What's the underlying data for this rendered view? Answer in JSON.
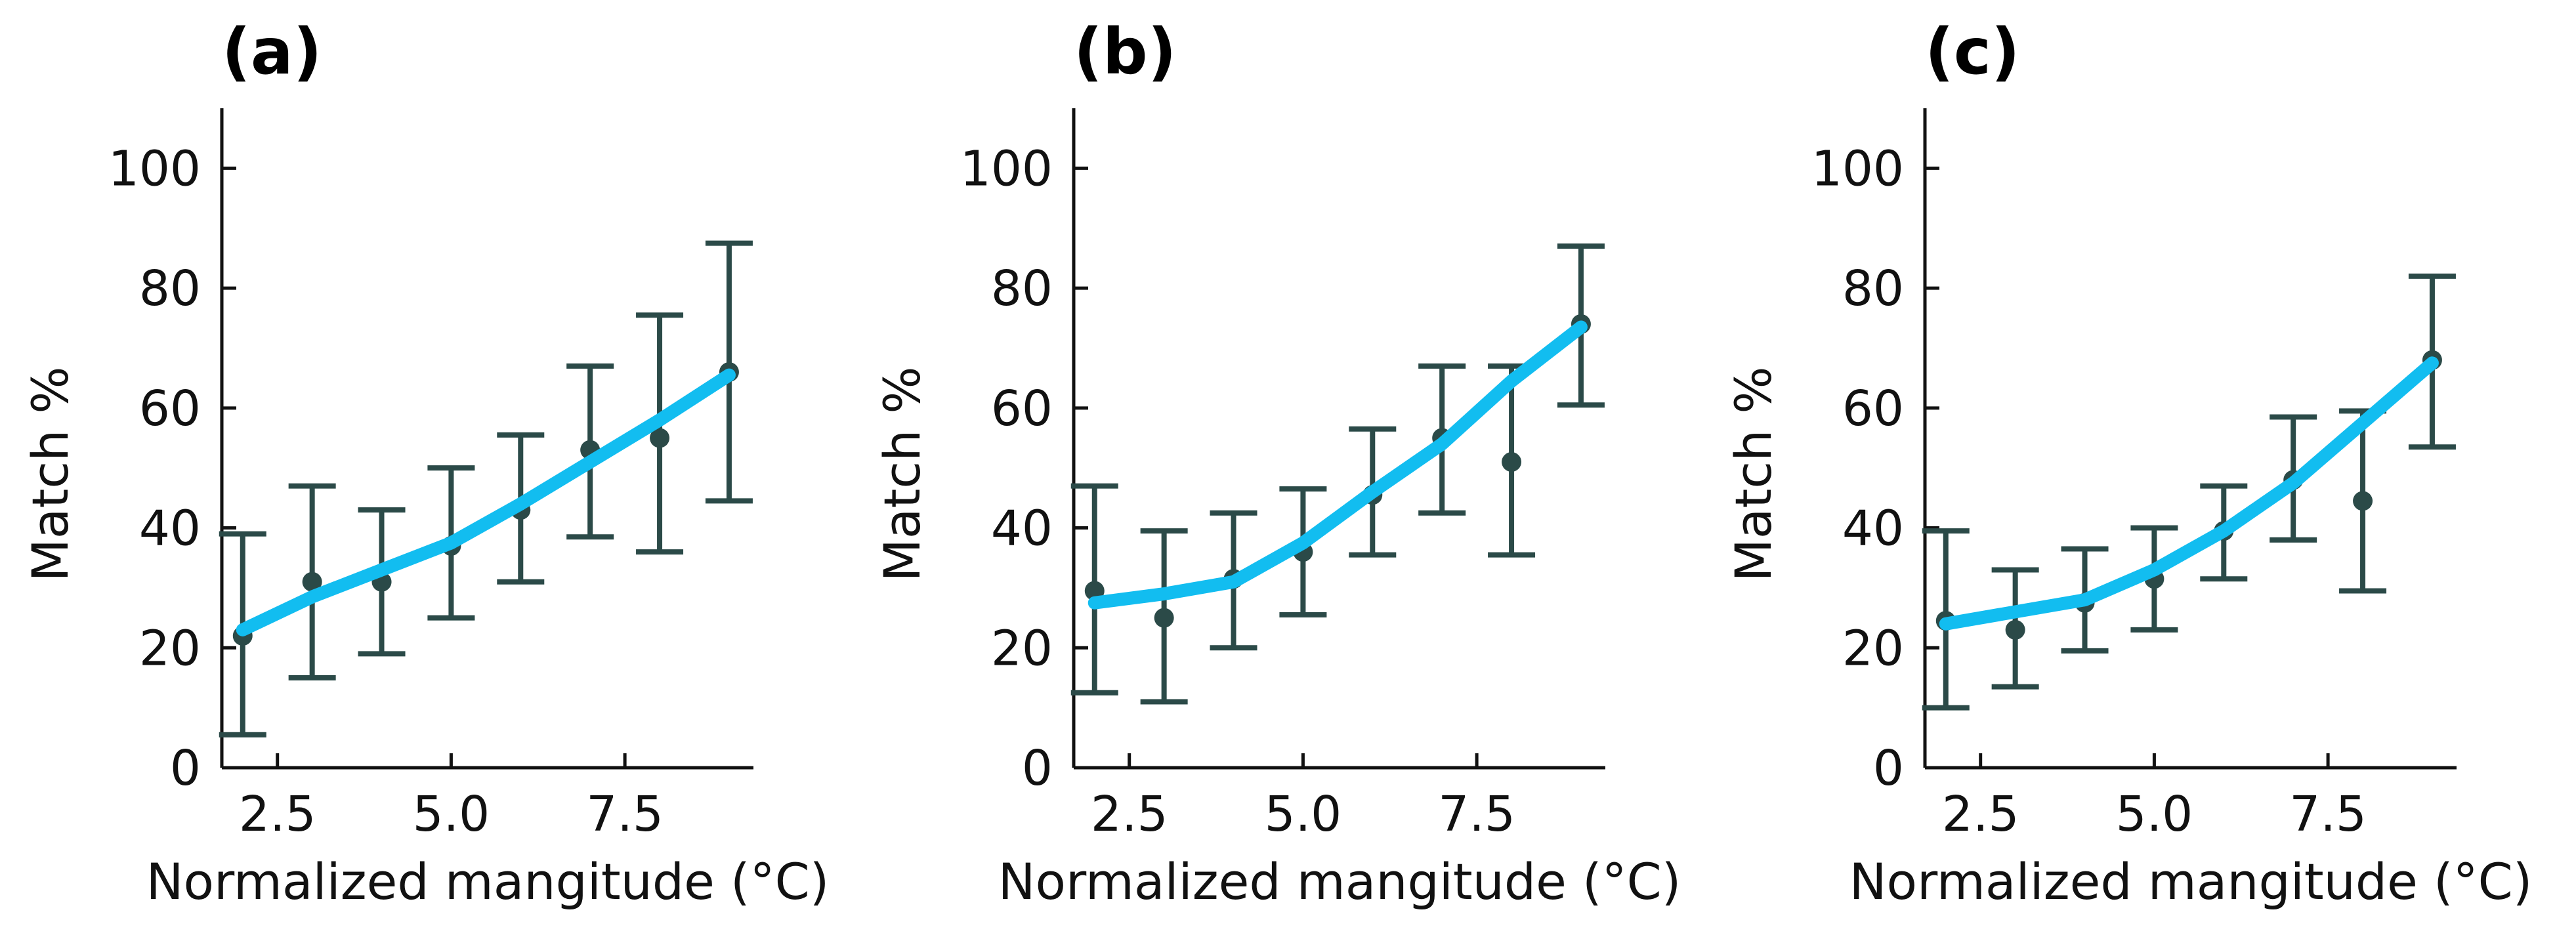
{
  "chart_data": [
    {
      "type": "line",
      "panel_label": "(a)",
      "xlabel": "Normalized mangitude (°C)",
      "ylabel": "Match %",
      "xlim": [
        1.7,
        9.35
      ],
      "ylim": [
        0,
        110
      ],
      "xticks": [
        2.5,
        5.0,
        7.5
      ],
      "xtick_labels": [
        "2.5",
        "5.0",
        "7.5"
      ],
      "yticks": [
        0,
        20,
        40,
        60,
        80,
        100
      ],
      "ytick_labels": [
        "0",
        "20",
        "40",
        "60",
        "80",
        "100"
      ],
      "points": {
        "x": [
          2,
          3,
          4,
          5,
          6,
          7,
          8,
          9
        ],
        "y": [
          22,
          31,
          31,
          37,
          43,
          53,
          55,
          66
        ],
        "err_low": [
          5.5,
          15,
          19,
          25,
          31,
          38.5,
          36,
          44.5
        ],
        "err_high": [
          39,
          47,
          43,
          50,
          55.5,
          67,
          75.5,
          87.5
        ]
      },
      "fit": {
        "x": [
          2,
          3,
          4,
          5,
          6,
          7,
          8,
          9
        ],
        "y": [
          23,
          28.5,
          33,
          37.5,
          44,
          51,
          58,
          65.5
        ]
      }
    },
    {
      "type": "line",
      "panel_label": "(b)",
      "xlabel": "Normalized mangitude (°C)",
      "ylabel": "Match %",
      "xlim": [
        1.7,
        9.35
      ],
      "ylim": [
        0,
        110
      ],
      "xticks": [
        2.5,
        5.0,
        7.5
      ],
      "xtick_labels": [
        "2.5",
        "5.0",
        "7.5"
      ],
      "yticks": [
        0,
        20,
        40,
        60,
        80,
        100
      ],
      "ytick_labels": [
        "0",
        "20",
        "40",
        "60",
        "80",
        "100"
      ],
      "points": {
        "x": [
          2,
          3,
          4,
          5,
          6,
          7,
          8,
          9
        ],
        "y": [
          29.5,
          25,
          31.5,
          36,
          45.5,
          55,
          51,
          74
        ],
        "err_low": [
          12.5,
          11,
          20,
          25.5,
          35.5,
          42.5,
          35.5,
          60.5
        ],
        "err_high": [
          47,
          39.5,
          42.5,
          46.5,
          56.5,
          67,
          67,
          87
        ]
      },
      "fit": {
        "x": [
          2,
          3,
          4,
          5,
          6,
          7,
          8,
          9
        ],
        "y": [
          27.5,
          29,
          31,
          37.5,
          46,
          54,
          64.5,
          73.5
        ]
      }
    },
    {
      "type": "line",
      "panel_label": "(c)",
      "xlabel": "Normalized mangitude (°C)",
      "ylabel": "Match %",
      "xlim": [
        1.7,
        9.35
      ],
      "ylim": [
        0,
        110
      ],
      "xticks": [
        2.5,
        5.0,
        7.5
      ],
      "xtick_labels": [
        "2.5",
        "5.0",
        "7.5"
      ],
      "yticks": [
        0,
        20,
        40,
        60,
        80,
        100
      ],
      "ytick_labels": [
        "0",
        "20",
        "40",
        "60",
        "80",
        "100"
      ],
      "points": {
        "x": [
          2,
          3,
          4,
          5,
          6,
          7,
          8,
          9
        ],
        "y": [
          24.5,
          23,
          27.5,
          31.5,
          39.5,
          48,
          44.5,
          68
        ],
        "err_low": [
          10,
          13.5,
          19.5,
          23,
          31.5,
          38,
          29.5,
          53.5
        ],
        "err_high": [
          39.5,
          33,
          36.5,
          40,
          47,
          58.5,
          59.5,
          82
        ]
      },
      "fit": {
        "x": [
          2,
          3,
          4,
          5,
          6,
          7,
          8,
          9
        ],
        "y": [
          24,
          26,
          28,
          33,
          39.5,
          47.5,
          57.5,
          67.5
        ]
      }
    }
  ]
}
